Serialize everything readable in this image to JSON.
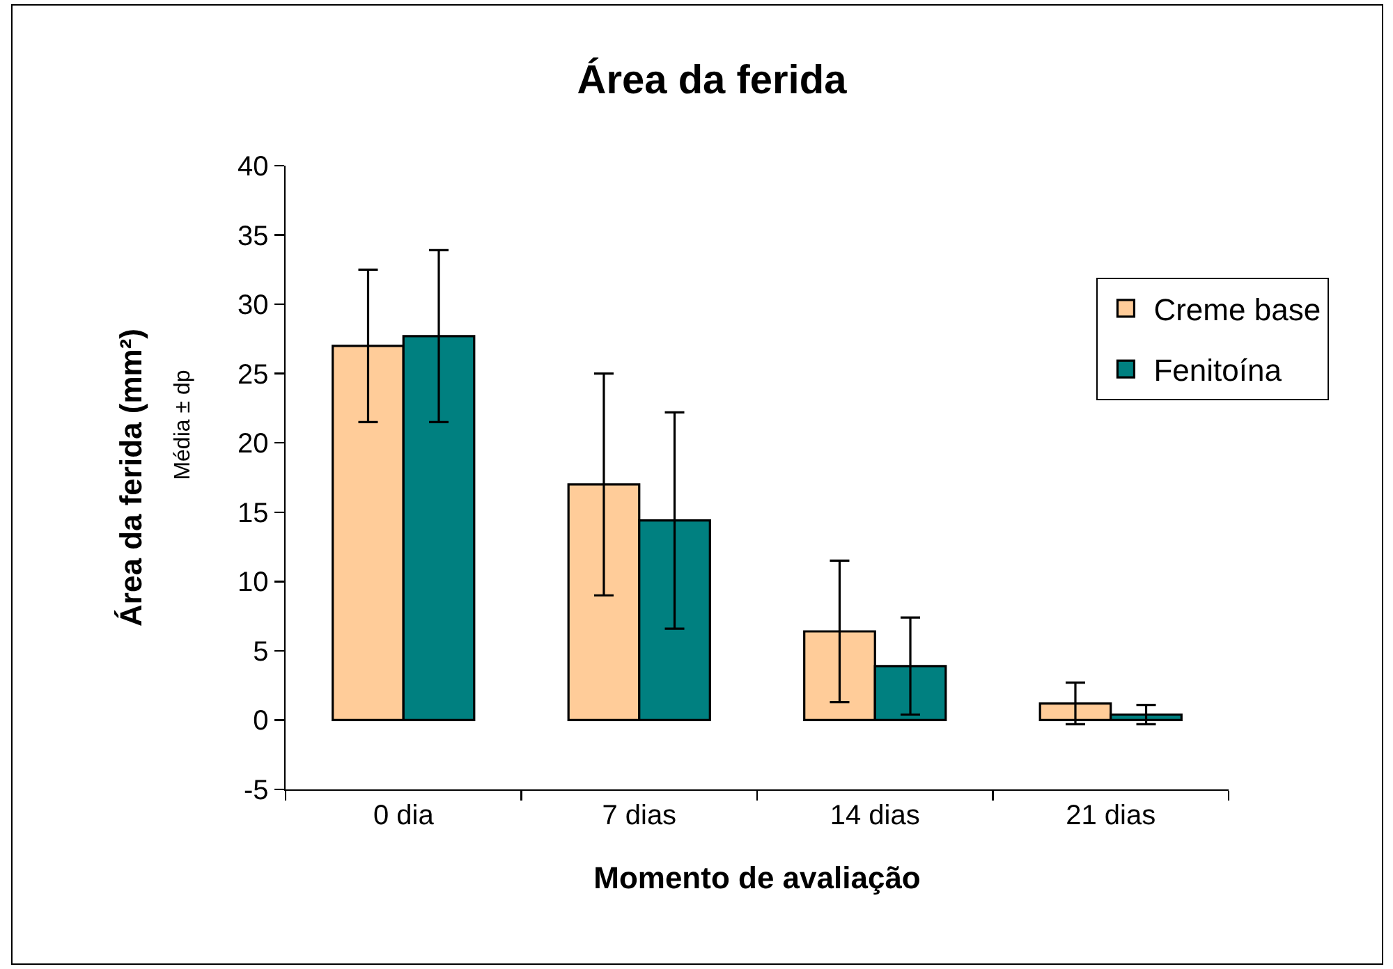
{
  "chart_data": {
    "type": "bar",
    "title": "Área da ferida",
    "xlabel": "Momento de avaliação",
    "ylabel": "Área da ferida (mm²)",
    "annotations": [
      "Média ± dp"
    ],
    "categories": [
      "0 dia",
      "7 dias",
      "14 dias",
      "21 dias"
    ],
    "series": [
      {
        "name": "Creme base",
        "color": "#ffcc99",
        "values": [
          27.0,
          17.0,
          6.4,
          1.2
        ],
        "errors": [
          5.5,
          8.0,
          5.1,
          1.5
        ]
      },
      {
        "name": "Fenitoína",
        "color": "#008080",
        "values": [
          27.7,
          14.4,
          3.9,
          0.4
        ],
        "errors": [
          6.2,
          7.8,
          3.5,
          0.7
        ]
      }
    ],
    "ylim": [
      -5,
      40
    ],
    "yticks": [
      -5,
      0,
      5,
      10,
      15,
      20,
      25,
      30,
      35,
      40
    ],
    "legend": "top right"
  }
}
